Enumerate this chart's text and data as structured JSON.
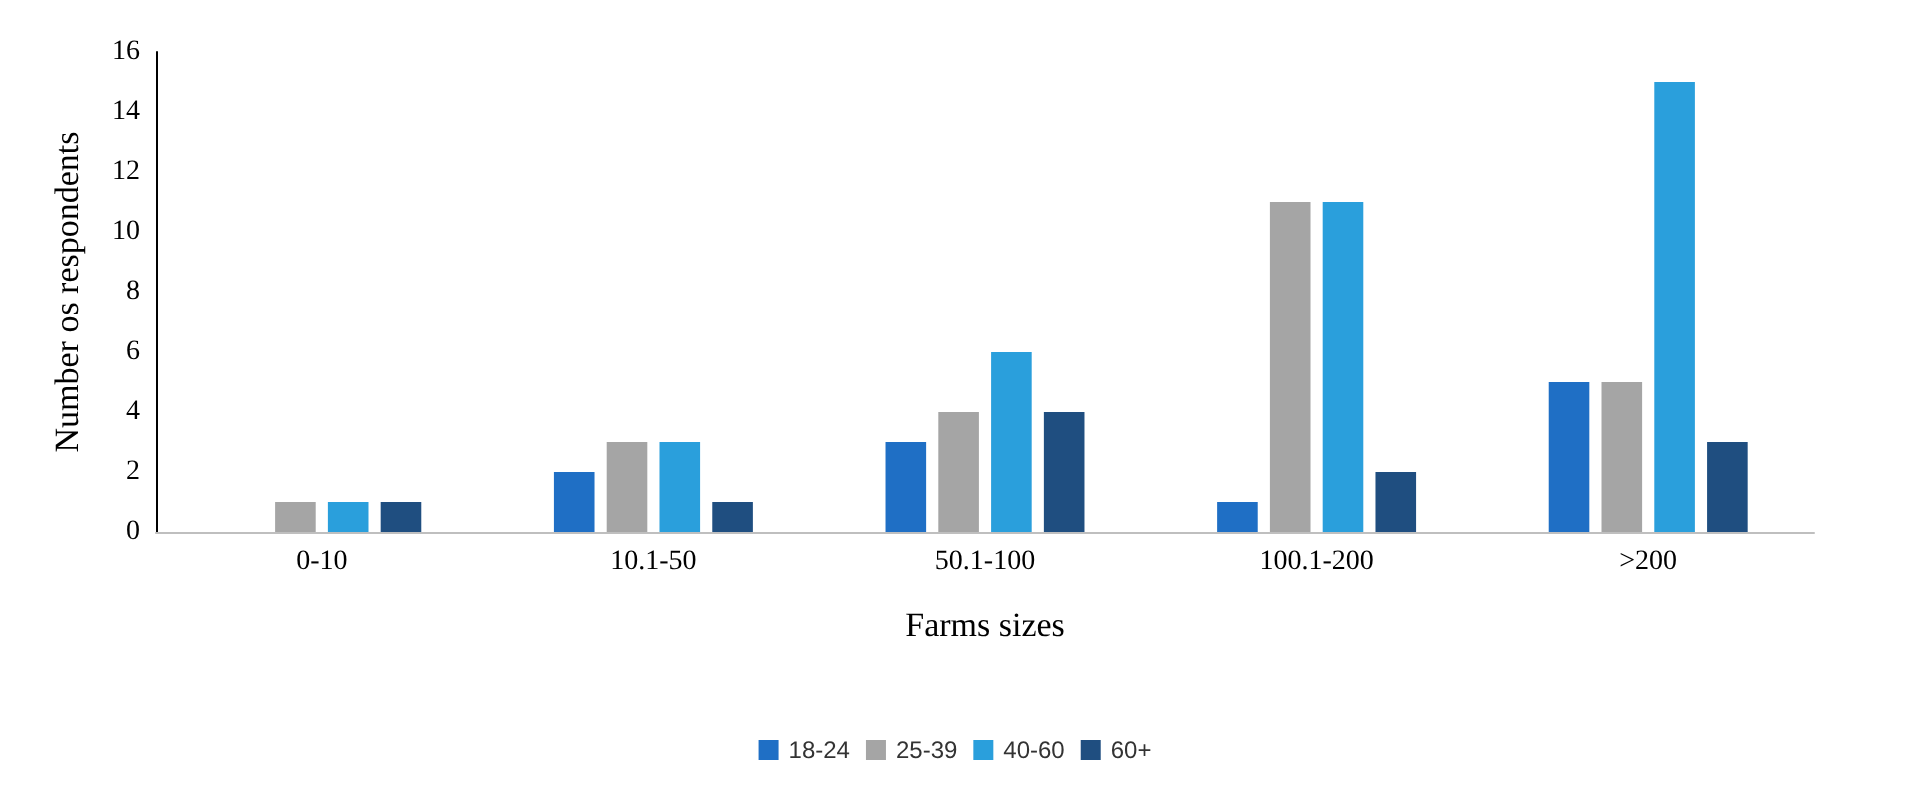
{
  "chart_data": {
    "type": "bar",
    "xlabel": "Farms sizes",
    "ylabel": "Number os respondents",
    "categories": [
      "0-10",
      "10.1-50",
      "50.1-100",
      "100.1-200",
      ">200"
    ],
    "series": [
      {
        "name": "18-24",
        "color": "#1f6fc5",
        "values": [
          0,
          2,
          3,
          1,
          5
        ]
      },
      {
        "name": "25-39",
        "color": "#a5a5a5",
        "values": [
          1,
          3,
          4,
          11,
          5
        ]
      },
      {
        "name": "40-60",
        "color": "#2a9fdc",
        "values": [
          1,
          3,
          6,
          11,
          15
        ]
      },
      {
        "name": "60+",
        "color": "#1f4e80",
        "values": [
          1,
          1,
          4,
          2,
          3
        ]
      }
    ],
    "ylim": [
      0,
      16
    ],
    "yticks": [
      0,
      2,
      4,
      6,
      8,
      10,
      12,
      14,
      16
    ],
    "grid": false,
    "legend": "bottom"
  }
}
